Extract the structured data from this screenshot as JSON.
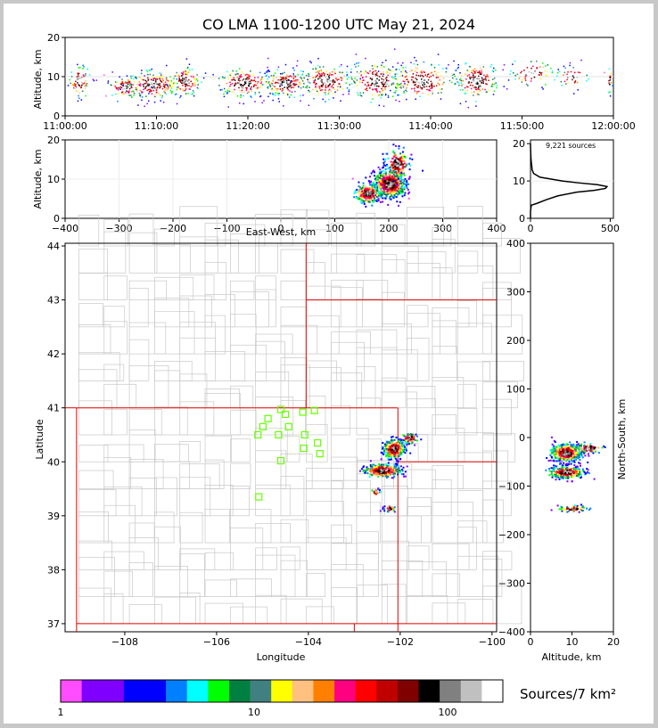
{
  "chart_data": [
    {
      "type": "scatter",
      "name": "altitude-time",
      "title": "CO LMA 1100-1200 UTC May 21, 2024",
      "xlabel": "",
      "ylabel": "Altitude, km",
      "xticks": [
        "11:00:00",
        "11:10:00",
        "11:20:00",
        "11:30:00",
        "11:40:00",
        "11:50:00",
        "12:00:00"
      ],
      "yticks": [
        "0",
        "10",
        "20"
      ],
      "xlim": [
        0,
        60
      ],
      "ylim": [
        0,
        20
      ],
      "clusters": [
        {
          "x": 1.5,
          "y": 9,
          "spread_x": 1.0,
          "spread_y": 3.5,
          "n": 70
        },
        {
          "x": 6.5,
          "y": 7.5,
          "spread_x": 1.5,
          "spread_y": 2.5,
          "n": 90
        },
        {
          "x": 9.5,
          "y": 8,
          "spread_x": 2.5,
          "spread_y": 3,
          "n": 200
        },
        {
          "x": 13,
          "y": 9,
          "spread_x": 1.5,
          "spread_y": 3,
          "n": 120
        },
        {
          "x": 19.5,
          "y": 8.5,
          "spread_x": 2.5,
          "spread_y": 3,
          "n": 180
        },
        {
          "x": 24,
          "y": 8.5,
          "spread_x": 2,
          "spread_y": 3,
          "n": 180
        },
        {
          "x": 28.5,
          "y": 9,
          "spread_x": 2.5,
          "spread_y": 3.5,
          "n": 180
        },
        {
          "x": 34,
          "y": 9,
          "spread_x": 2.5,
          "spread_y": 4,
          "n": 200
        },
        {
          "x": 39,
          "y": 9,
          "spread_x": 3,
          "spread_y": 4,
          "n": 200
        },
        {
          "x": 45,
          "y": 9,
          "spread_x": 2,
          "spread_y": 4,
          "n": 160
        },
        {
          "x": 51,
          "y": 11,
          "spread_x": 2,
          "spread_y": 3,
          "n": 60
        },
        {
          "x": 55.5,
          "y": 10,
          "spread_x": 1.5,
          "spread_y": 2.5,
          "n": 40
        },
        {
          "x": 59.5,
          "y": 9,
          "spread_x": 0.3,
          "spread_y": 3,
          "n": 20
        }
      ]
    },
    {
      "type": "heatmap",
      "name": "east-west-altitude",
      "xlabel": "East-West, km",
      "ylabel": "Altitude, km",
      "xticks": [
        "−400",
        "−300",
        "−200",
        "−100",
        "0",
        "100",
        "200",
        "300",
        "400"
      ],
      "yticks": [
        "0",
        "10",
        "20"
      ],
      "xlim": [
        -400,
        400
      ],
      "ylim": [
        0,
        20
      ],
      "clusters": [
        {
          "x": 200,
          "y": 9,
          "spread_x": 25,
          "spread_y": 3,
          "n": 600
        },
        {
          "x": 160,
          "y": 6.5,
          "spread_x": 20,
          "spread_y": 2,
          "n": 200
        },
        {
          "x": 215,
          "y": 14,
          "spread_x": 18,
          "spread_y": 3,
          "n": 140
        }
      ]
    },
    {
      "type": "line",
      "name": "altitude-histogram",
      "annotation": "9,221 sources",
      "xticks": [
        "0",
        "500"
      ],
      "yticks": [
        "0",
        "10",
        "20"
      ],
      "xlim": [
        0,
        520
      ],
      "ylim": [
        0,
        21
      ],
      "altitude_km": [
        0,
        2,
        3.5,
        4,
        5,
        6,
        7,
        7.5,
        8,
        8.5,
        9,
        9.5,
        10,
        11,
        12,
        13,
        14,
        15,
        16,
        17,
        18,
        19,
        20
      ],
      "count": [
        0,
        0,
        5,
        40,
        100,
        170,
        290,
        400,
        470,
        480,
        420,
        300,
        200,
        60,
        20,
        10,
        8,
        5,
        3,
        2,
        1,
        0,
        0
      ]
    },
    {
      "type": "map",
      "name": "plan-view",
      "xlabel": "Longitude",
      "ylabel": "Latitude",
      "xticks": [
        "−108",
        "−106",
        "−104",
        "−102",
        "−100"
      ],
      "yticks": [
        "37",
        "38",
        "39",
        "40",
        "41",
        "42",
        "43",
        "44"
      ],
      "xlim": [
        -109.3,
        -99.9
      ],
      "ylim": [
        36.85,
        44.05
      ],
      "state_lines": [
        [
          [
            -109.05,
            41.0
          ],
          [
            -102.05,
            41.0
          ]
        ],
        [
          [
            -109.05,
            37.0
          ],
          [
            -99.9,
            37.0
          ]
        ],
        [
          [
            -109.05,
            41.0
          ],
          [
            -109.05,
            36.85
          ]
        ],
        [
          [
            -102.05,
            41.0
          ],
          [
            -102.05,
            36.85
          ]
        ],
        [
          [
            -104.05,
            44.05
          ],
          [
            -104.05,
            41.0
          ]
        ],
        [
          [
            -104.05,
            43.0
          ],
          [
            -99.9,
            43.0
          ]
        ],
        [
          [
            -102.05,
            40.0
          ],
          [
            -99.9,
            40.0
          ]
        ],
        [
          [
            -103.0,
            37.0
          ],
          [
            -103.0,
            36.85
          ]
        ],
        [
          [
            -109.3,
            41.0
          ],
          [
            -109.05,
            41.0
          ]
        ]
      ],
      "stations": [
        [
          -104.6,
          40.97
        ],
        [
          -104.5,
          40.88
        ],
        [
          -103.87,
          40.95
        ],
        [
          -104.12,
          40.92
        ],
        [
          -104.88,
          40.8
        ],
        [
          -104.43,
          40.65
        ],
        [
          -104.99,
          40.65
        ],
        [
          -104.65,
          40.5
        ],
        [
          -104.08,
          40.5
        ],
        [
          -105.1,
          40.5
        ],
        [
          -103.8,
          40.35
        ],
        [
          -103.75,
          40.15
        ],
        [
          -104.1,
          40.25
        ],
        [
          -104.6,
          40.02
        ],
        [
          -105.08,
          39.35
        ]
      ],
      "clusters": [
        {
          "x": -102.15,
          "y": 40.25,
          "spread_x": 0.2,
          "spread_y": 0.15,
          "n": 300
        },
        {
          "x": -102.4,
          "y": 39.85,
          "spread_x": 0.35,
          "spread_y": 0.1,
          "n": 280
        },
        {
          "x": -101.8,
          "y": 40.45,
          "spread_x": 0.15,
          "spread_y": 0.08,
          "n": 60
        },
        {
          "x": -102.25,
          "y": 39.15,
          "spread_x": 0.1,
          "spread_y": 0.05,
          "n": 40
        },
        {
          "x": -102.55,
          "y": 39.45,
          "spread_x": 0.08,
          "spread_y": 0.05,
          "n": 20
        }
      ]
    },
    {
      "type": "heatmap",
      "name": "altitude-north-south",
      "xlabel": "Altitude, km",
      "ylabel": "North-South, km",
      "xticks": [
        "0",
        "10",
        "20"
      ],
      "yticks": [
        "−400",
        "−300",
        "−200",
        "−100",
        "0",
        "100",
        "200",
        "300",
        "400"
      ],
      "xlim": [
        0,
        20
      ],
      "ylim": [
        -400,
        400
      ],
      "clusters": [
        {
          "x": 8.5,
          "y": -30,
          "spread_x": 3,
          "spread_y": 15,
          "n": 500
        },
        {
          "x": 8.5,
          "y": -70,
          "spread_x": 3.5,
          "spread_y": 10,
          "n": 300
        },
        {
          "x": 10,
          "y": -145,
          "spread_x": 3,
          "spread_y": 5,
          "n": 60
        },
        {
          "x": 14,
          "y": -20,
          "spread_x": 3,
          "spread_y": 8,
          "n": 60
        }
      ]
    }
  ],
  "colorbar": {
    "label": "Sources/7 km²",
    "tick_labels": [
      "1",
      "10",
      "100"
    ],
    "colors": [
      "#ff4dff",
      "#8000ff",
      "#8000ff",
      "#0000ff",
      "#0000ff",
      "#0080ff",
      "#00ffff",
      "#00ff00",
      "#008040",
      "#408080",
      "#ffff00",
      "#ffc080",
      "#ff8000",
      "#ff0080",
      "#ff0000",
      "#c00000",
      "#800000",
      "#000000",
      "#808080",
      "#c0c0c0",
      "#ffffff"
    ]
  }
}
